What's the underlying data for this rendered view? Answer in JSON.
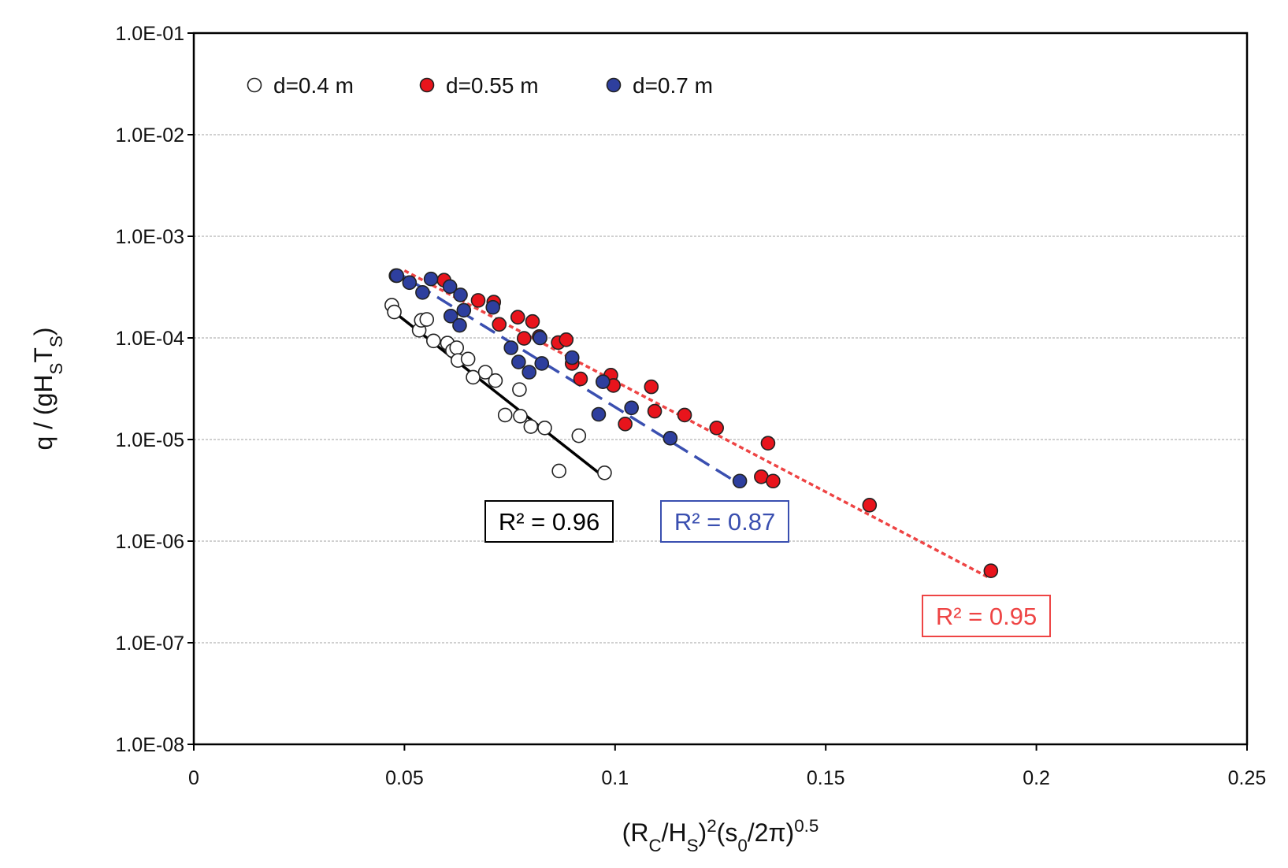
{
  "chart_data": {
    "type": "scatter",
    "y_scale": "log",
    "grid": true,
    "legend": "top-left",
    "xlim": [
      0,
      0.25
    ],
    "xticks": [
      0,
      0.05,
      0.1,
      0.15,
      0.2,
      0.25
    ],
    "ylim": [
      1e-08,
      0.1
    ],
    "yticks": [
      {
        "value": 1e-08,
        "label": "1.0E-08"
      },
      {
        "value": 1e-07,
        "label": "1.0E-07"
      },
      {
        "value": 1e-06,
        "label": "1.0E-06"
      },
      {
        "value": 1e-05,
        "label": "1.0E-05"
      },
      {
        "value": 0.0001,
        "label": "1.0E-04"
      },
      {
        "value": 0.001,
        "label": "1.0E-03"
      },
      {
        "value": 0.01,
        "label": "1.0E-02"
      },
      {
        "value": 0.1,
        "label": "1.0E-01"
      }
    ],
    "x_label": [
      {
        "text": "(R"
      },
      {
        "text": "C",
        "shift": "sub"
      },
      {
        "text": "/H"
      },
      {
        "text": "S",
        "shift": "sub"
      },
      {
        "text": ")"
      },
      {
        "text": "2",
        "shift": "super"
      },
      {
        "text": "(s"
      },
      {
        "text": "0",
        "shift": "sub"
      },
      {
        "text": "/2π)"
      },
      {
        "text": "0.5",
        "shift": "super"
      }
    ],
    "y_label": [
      {
        "text": "q / (gH"
      },
      {
        "text": "S",
        "shift": "sub"
      },
      {
        "text": "T"
      },
      {
        "text": "S",
        "shift": "sub"
      },
      {
        "text": ")"
      }
    ],
    "series": [
      {
        "name": "d=0.4 m",
        "fill": "#ffffff",
        "color": "#222222",
        "x": [
          0.047,
          0.0476,
          0.0535,
          0.054,
          0.0553,
          0.0569,
          0.0602,
          0.0614,
          0.0624,
          0.0627,
          0.0651,
          0.0663,
          0.0692,
          0.0716,
          0.0739,
          0.0773,
          0.0775,
          0.08,
          0.0833,
          0.0914,
          0.0867,
          0.0975
        ],
        "values": [
          0.00021,
          0.00018,
          0.000119,
          0.000149,
          0.000152,
          9.35e-05,
          8.9e-05,
          7.5e-05,
          8e-05,
          6e-05,
          6.2e-05,
          4.1e-05,
          4.6e-05,
          3.8e-05,
          1.74e-05,
          3.1e-05,
          1.7e-05,
          1.34e-05,
          1.3e-05,
          1.09e-05,
          4.9e-06,
          4.7e-06
        ],
        "fit": {
          "x": [
            0.0473,
            0.097
          ],
          "values": [
            0.000183,
            4.4e-06
          ],
          "color": "#000000",
          "dash": "solid",
          "label": "R² = 0.96"
        }
      },
      {
        "name": "d=0.55 m",
        "fill": "#e8141c",
        "color": "#222222",
        "x": [
          0.048,
          0.0594,
          0.0675,
          0.0712,
          0.0725,
          0.0769,
          0.0784,
          0.0804,
          0.082,
          0.0865,
          0.0884,
          0.0898,
          0.0918,
          0.099,
          0.0996,
          0.1024,
          0.1086,
          0.1094,
          0.1165,
          0.1241,
          0.1363,
          0.1347,
          0.1375,
          0.1604,
          0.1892
        ],
        "values": [
          0.00041,
          0.00037,
          0.000234,
          0.000225,
          0.000136,
          0.00016,
          9.9e-05,
          0.000145,
          0.000103,
          9e-05,
          9.6e-05,
          5.6e-05,
          3.95e-05,
          4.3e-05,
          3.4e-05,
          1.42e-05,
          3.3e-05,
          1.9e-05,
          1.74e-05,
          1.3e-05,
          9.2e-06,
          4.3e-06,
          3.9e-06,
          2.26e-06,
          5.1e-07
        ],
        "fit": {
          "x": [
            0.05,
            0.1886
          ],
          "values": [
            0.00046,
            4.4e-07
          ],
          "color": "#ee4444",
          "dash": "dotted",
          "label": "R² = 0.95"
        }
      },
      {
        "name": "d=0.7 m",
        "fill": "#2e3f9e",
        "color": "#222222",
        "x": [
          0.0482,
          0.0512,
          0.0563,
          0.0543,
          0.0608,
          0.0633,
          0.0641,
          0.061,
          0.0631,
          0.071,
          0.0753,
          0.0771,
          0.0796,
          0.0822,
          0.0826,
          0.0898,
          0.0971,
          0.0961,
          0.1039,
          0.1131,
          0.1296
        ],
        "values": [
          0.00041,
          0.00035,
          0.00038,
          0.00028,
          0.00032,
          0.000265,
          0.000187,
          0.000164,
          0.000133,
          0.0002,
          8e-05,
          5.8e-05,
          4.6e-05,
          0.0001,
          5.6e-05,
          6.4e-05,
          3.7e-05,
          1.77e-05,
          2.05e-05,
          1.03e-05,
          3.9e-06
        ],
        "fit": {
          "x": [
            0.0476,
            0.1284
          ],
          "values": [
            0.00046,
            3.9e-06
          ],
          "color": "#3a4fb0",
          "dash": "dashed",
          "label": "R² = 0.87"
        }
      }
    ]
  }
}
